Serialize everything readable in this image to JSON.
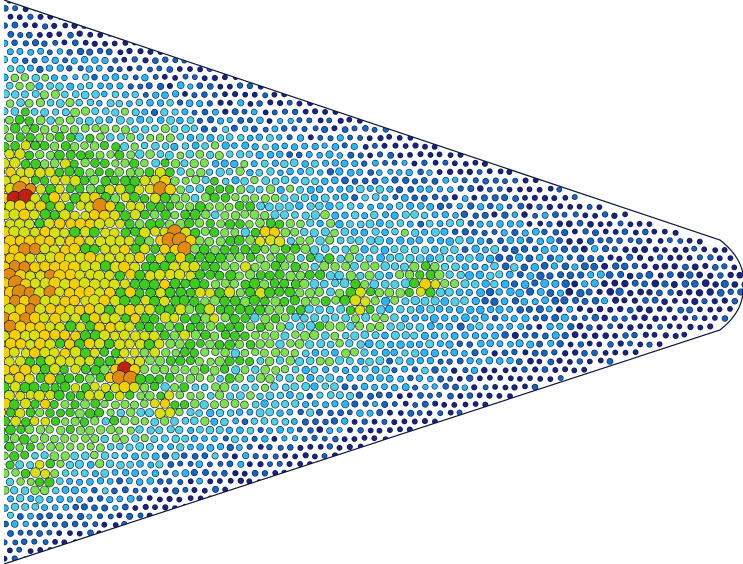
{
  "figure": {
    "subject": "granular-particle-packing",
    "shape": "wedge",
    "colormap": [
      "#1a237e",
      "#1565c0",
      "#29b6f6",
      "#4dd0e1",
      "#7ee04a",
      "#3ecb1a",
      "#d8e010",
      "#f5d000",
      "#e08a10",
      "#c02010"
    ],
    "background": "#ffffff",
    "stroke": "#0a1640",
    "hot_spots": [
      {
        "u": 0.02,
        "v": 0.35,
        "level": 1.0
      },
      {
        "u": 0.23,
        "v": 0.43,
        "level": 1.0
      },
      {
        "u": 0.16,
        "v": 0.67,
        "level": 1.0
      },
      {
        "u": 0.13,
        "v": 0.37,
        "level": 0.85
      },
      {
        "u": 0.21,
        "v": 0.33,
        "level": 0.8
      },
      {
        "u": 0.36,
        "v": 0.42,
        "level": 0.75
      },
      {
        "u": 0.06,
        "v": 0.7,
        "level": 0.75
      },
      {
        "u": 0.22,
        "v": 0.72,
        "level": 0.72
      },
      {
        "u": 0.48,
        "v": 0.53,
        "level": 0.72
      },
      {
        "u": 0.57,
        "v": 0.5,
        "level": 0.7
      },
      {
        "u": 0.05,
        "v": 0.84,
        "level": 0.65
      },
      {
        "u": 0.28,
        "v": 0.55,
        "level": 0.65
      }
    ]
  }
}
